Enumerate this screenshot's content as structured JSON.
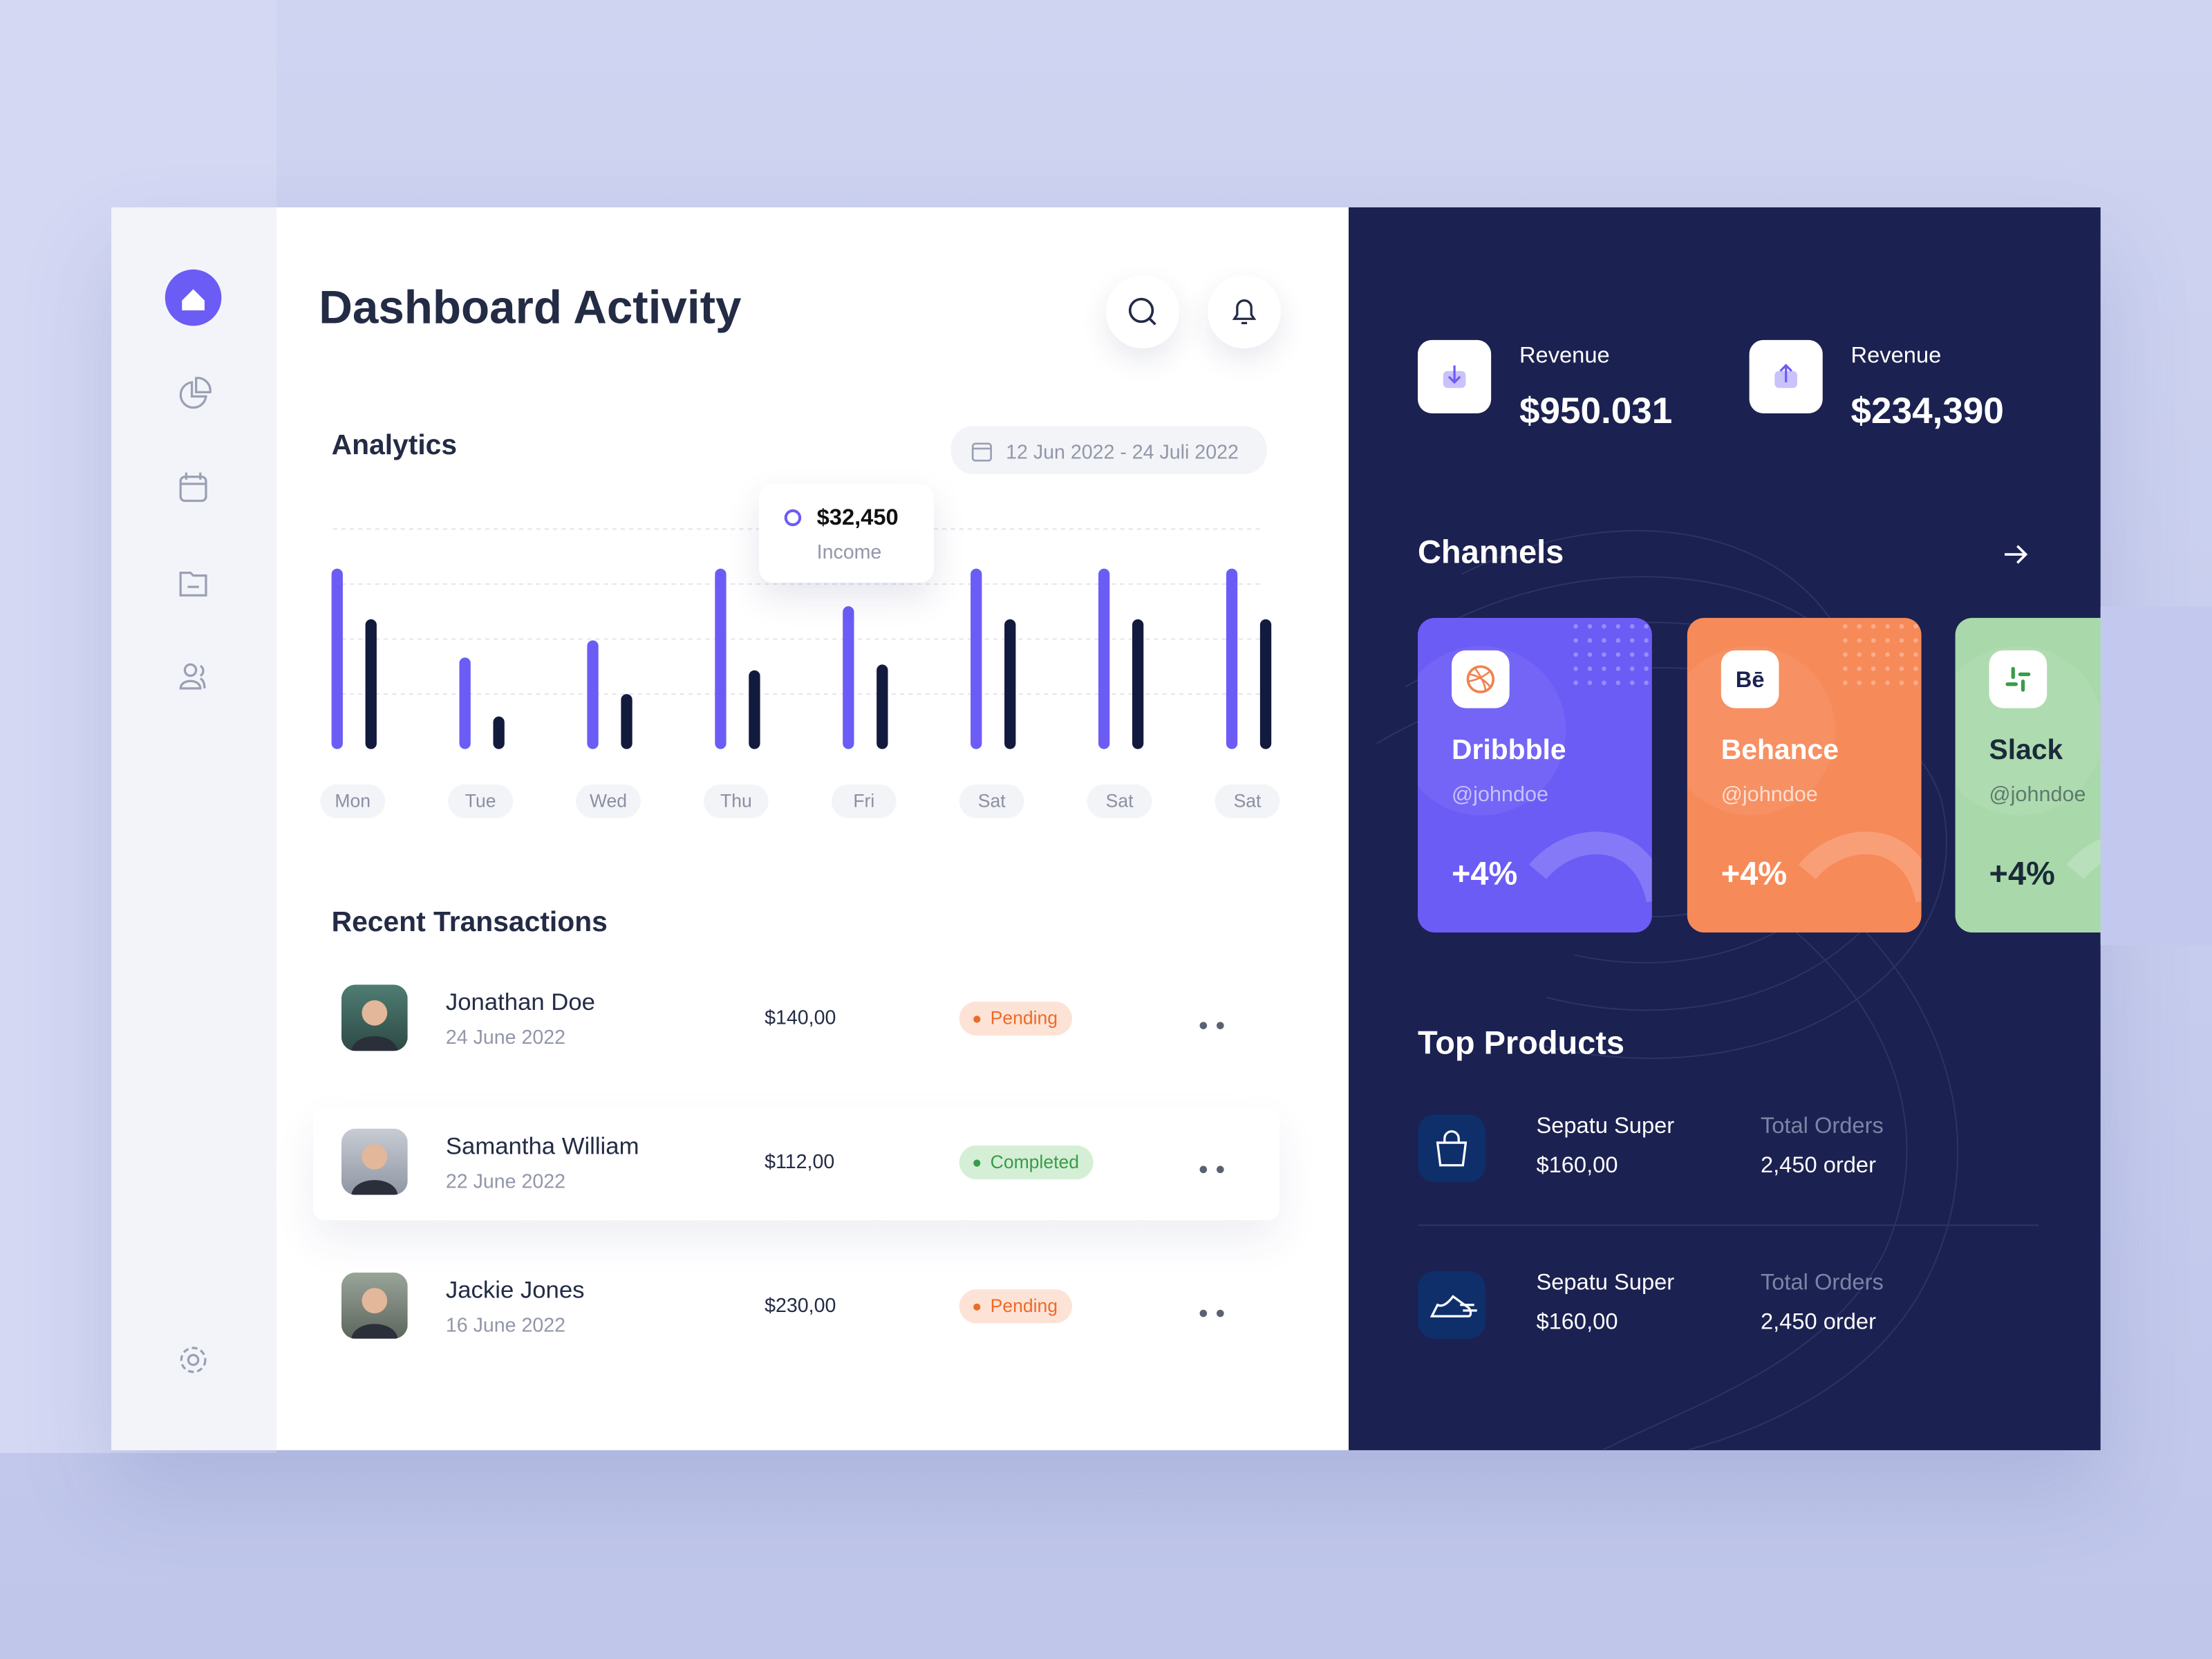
{
  "header": {
    "title": "Dashboard Activity"
  },
  "analytics": {
    "title": "Analytics",
    "date_range": "12 Jun 2022 - 24 Juli 2022"
  },
  "chart_data": {
    "type": "bar",
    "categories": [
      "Mon",
      "Tue",
      "Wed",
      "Thu",
      "Fri",
      "Sat",
      "Sat",
      "Sat"
    ],
    "series": [
      {
        "name": "Income",
        "color": "#6c5cf6",
        "values": [
          41000,
          20800,
          24700,
          41000,
          32450,
          41000,
          41000,
          41000
        ],
        "value_labels": [
          null,
          null,
          null,
          null,
          "$32,450",
          null,
          null,
          null
        ]
      },
      {
        "color": "#121a3d",
        "values": [
          29500,
          7400,
          12500,
          17900,
          19200,
          29500,
          29500,
          29500
        ]
      }
    ],
    "ylim": [
      0,
      50000
    ],
    "grid_lines": [
      12500,
      25000,
      37500,
      50000
    ]
  },
  "transactions": {
    "title": "Recent Transactions",
    "rows": [
      {
        "name": "Jonathan Doe",
        "date": "24 June 2022",
        "amount": "$140,00",
        "status": "Pending"
      },
      {
        "name": "Samantha William",
        "date": "22 June 2022",
        "amount": "$112,00",
        "status": "Completed"
      },
      {
        "name": "Jackie Jones",
        "date": "16 June 2022",
        "amount": "$230,00",
        "status": "Pending"
      }
    ]
  },
  "revenue": [
    {
      "label": "Revenue",
      "value": "$950.031"
    },
    {
      "label": "Revenue",
      "value": "$234,390"
    }
  ],
  "channels": {
    "title": "Channels",
    "items": [
      {
        "name": "Dribbble",
        "handle": "@johndoe",
        "change": "+4%"
      },
      {
        "name": "Behance",
        "handle": "@johndoe",
        "change": "+4%"
      },
      {
        "name": "Slack",
        "handle": "@johndoe",
        "change": "+4%"
      }
    ]
  },
  "top_products": {
    "title": "Top Products",
    "items": [
      {
        "name": "Sepatu Super",
        "price": "$160,00",
        "orders_label": "Total Orders",
        "orders": "2,450 order"
      },
      {
        "name": "Sepatu Super",
        "price": "$160,00",
        "orders_label": "Total Orders",
        "orders": "2,450 order"
      }
    ]
  }
}
